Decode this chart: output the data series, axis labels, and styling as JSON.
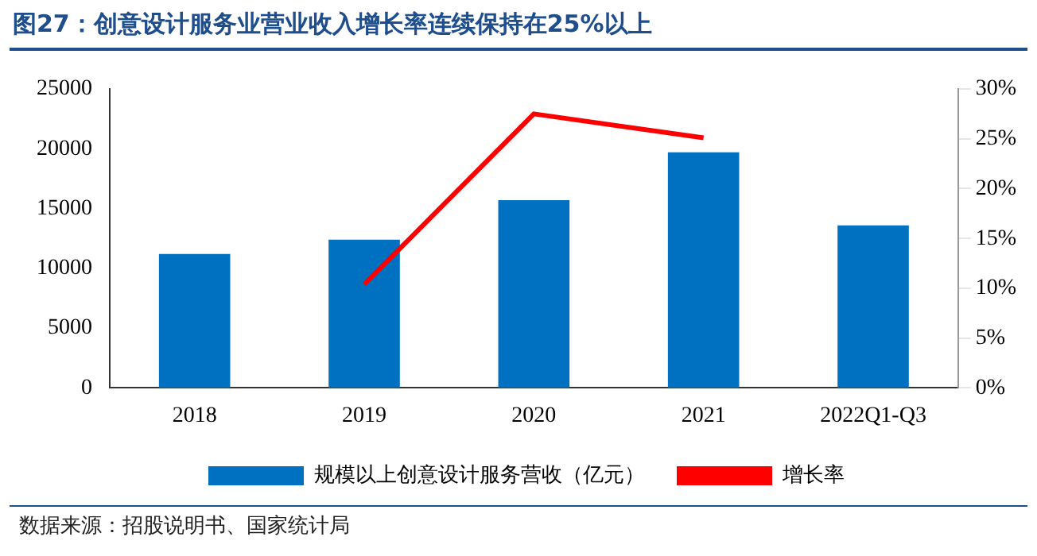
{
  "chart_data": {
    "type": "bar",
    "title": "图27：创意设计服务业营业收入增长率连续保持在25%以上",
    "categories": [
      "2018",
      "2019",
      "2020",
      "2021",
      "2022Q1-Q3"
    ],
    "series": [
      {
        "name": "规模以上创意设计服务营收（亿元）",
        "color": "#0070c0",
        "values": [
          11200,
          12400,
          15700,
          19700,
          13600
        ]
      },
      {
        "name": "增长率",
        "type": "line",
        "axis": "y2",
        "color": "#ff0000",
        "values": [
          null,
          10.4,
          27.5,
          25.1,
          null
        ]
      }
    ],
    "ylim": [
      0,
      25000
    ],
    "yticks": [
      0,
      5000,
      10000,
      15000,
      20000,
      25000
    ],
    "y2lim": [
      0,
      30
    ],
    "y2ticks": [
      {
        "value": 0,
        "label": "0%"
      },
      {
        "value": 5,
        "label": "5%"
      },
      {
        "value": 10,
        "label": "10%"
      },
      {
        "value": 15,
        "label": "15%"
      },
      {
        "value": 20,
        "label": "20%"
      },
      {
        "value": 25,
        "label": "25%"
      },
      {
        "value": 30,
        "label": "30%"
      }
    ],
    "legend": "bottom",
    "marker": "none",
    "grid": false,
    "annotations": [
      "数据来源：招股说明书、国家统计局"
    ]
  }
}
